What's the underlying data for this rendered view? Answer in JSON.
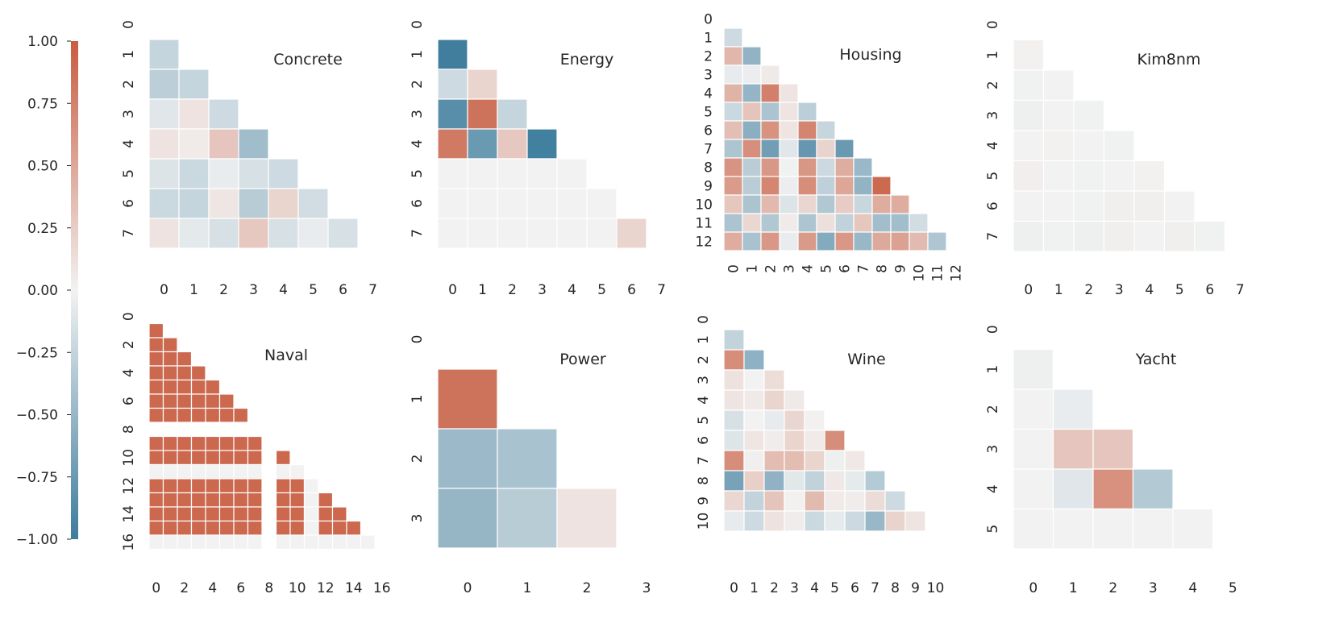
{
  "colorbar": {
    "min": -1.0,
    "max": 1.0,
    "tick_values": [
      1.0,
      0.75,
      0.5,
      0.25,
      0.0,
      -0.25,
      -0.5,
      -0.75,
      -1.0
    ],
    "tick_labels": [
      "1.00",
      "0.75",
      "0.50",
      "0.25",
      "0.00",
      "−0.25",
      "−0.50",
      "−0.75",
      "−1.00"
    ],
    "low_color": "#3d7c9c",
    "mid_color": "#f2f2f2",
    "high_color": "#c85c40"
  },
  "chart_data": [
    {
      "type": "heatmap",
      "title": "Concrete",
      "n": 8,
      "x_ticks": [
        "0",
        "1",
        "2",
        "3",
        "4",
        "5",
        "6",
        "7"
      ],
      "y_ticks": [
        "0",
        "1",
        "2",
        "3",
        "4",
        "5",
        "6",
        "7"
      ],
      "matrix": [
        [
          null,
          null,
          null,
          null,
          null,
          null,
          null,
          null
        ],
        [
          -0.25,
          null,
          null,
          null,
          null,
          null,
          null,
          null
        ],
        [
          -0.3,
          -0.25,
          null,
          null,
          null,
          null,
          null,
          null
        ],
        [
          -0.1,
          0.1,
          -0.2,
          null,
          null,
          null,
          null,
          null
        ],
        [
          0.1,
          0.05,
          0.3,
          -0.45,
          null,
          null,
          null,
          null
        ],
        [
          -0.12,
          -0.22,
          -0.05,
          -0.15,
          -0.2,
          null,
          null,
          null
        ],
        [
          -0.22,
          -0.25,
          0.08,
          -0.32,
          0.2,
          -0.18,
          null,
          null
        ],
        [
          0.1,
          -0.08,
          -0.15,
          0.28,
          -0.15,
          -0.05,
          -0.15,
          null
        ]
      ]
    },
    {
      "type": "heatmap",
      "title": "Energy",
      "n": 8,
      "x_ticks": [
        "0",
        "1",
        "2",
        "3",
        "4",
        "5",
        "6",
        "7"
      ],
      "y_ticks": [
        "0",
        "1",
        "2",
        "3",
        "4",
        "5",
        "6",
        "7"
      ],
      "matrix": [
        [
          null,
          null,
          null,
          null,
          null,
          null,
          null,
          null
        ],
        [
          -0.98,
          null,
          null,
          null,
          null,
          null,
          null,
          null
        ],
        [
          -0.2,
          0.2,
          null,
          null,
          null,
          null,
          null,
          null
        ],
        [
          -0.85,
          0.85,
          -0.25,
          null,
          null,
          null,
          null,
          null
        ],
        [
          0.8,
          -0.75,
          0.28,
          -0.97,
          null,
          null,
          null,
          null
        ],
        [
          0,
          0,
          0,
          0,
          0,
          null,
          null,
          null
        ],
        [
          0,
          0,
          0,
          0,
          0,
          0,
          null,
          null
        ],
        [
          0,
          0,
          0,
          0,
          0,
          0,
          0.2,
          null
        ]
      ]
    },
    {
      "type": "heatmap",
      "title": "Housing",
      "n": 13,
      "x_ticks": [
        "0",
        "1",
        "2",
        "3",
        "4",
        "5",
        "6",
        "7",
        "8",
        "9",
        "10",
        "11",
        "12"
      ],
      "y_ticks": [
        "0",
        "1",
        "2",
        "3",
        "4",
        "5",
        "6",
        "7",
        "8",
        "9",
        "10",
        "11",
        "12"
      ],
      "matrix": [
        [
          null,
          null,
          null,
          null,
          null,
          null,
          null,
          null,
          null,
          null,
          null,
          null,
          null
        ],
        [
          -0.2,
          null,
          null,
          null,
          null,
          null,
          null,
          null,
          null,
          null,
          null,
          null,
          null
        ],
        [
          0.4,
          -0.53,
          null,
          null,
          null,
          null,
          null,
          null,
          null,
          null,
          null,
          null,
          null
        ],
        [
          -0.06,
          -0.04,
          0.06,
          null,
          null,
          null,
          null,
          null,
          null,
          null,
          null,
          null,
          null
        ],
        [
          0.42,
          -0.52,
          0.76,
          0.09,
          null,
          null,
          null,
          null,
          null,
          null,
          null,
          null,
          null
        ],
        [
          -0.22,
          0.31,
          -0.39,
          0.09,
          -0.3,
          null,
          null,
          null,
          null,
          null,
          null,
          null,
          null
        ],
        [
          0.35,
          -0.57,
          0.64,
          0.09,
          0.73,
          -0.24,
          null,
          null,
          null,
          null,
          null,
          null,
          null
        ],
        [
          -0.38,
          0.66,
          -0.71,
          -0.1,
          -0.77,
          0.21,
          -0.75,
          null,
          null,
          null,
          null,
          null,
          null
        ],
        [
          0.63,
          -0.31,
          0.6,
          -0.01,
          0.61,
          -0.21,
          0.46,
          -0.49,
          null,
          null,
          null,
          null,
          null
        ],
        [
          0.58,
          -0.31,
          0.72,
          -0.04,
          0.67,
          -0.29,
          0.51,
          -0.53,
          0.91,
          null,
          null,
          null,
          null
        ],
        [
          0.29,
          -0.39,
          0.38,
          -0.12,
          0.19,
          -0.36,
          0.26,
          -0.23,
          0.46,
          0.46,
          null,
          null,
          null
        ],
        [
          -0.39,
          0.18,
          -0.36,
          0.05,
          -0.38,
          0.13,
          -0.27,
          0.29,
          -0.44,
          -0.44,
          -0.18,
          null,
          null
        ],
        [
          0.46,
          -0.41,
          0.6,
          -0.05,
          0.59,
          -0.61,
          0.6,
          -0.5,
          0.49,
          0.54,
          0.37,
          -0.37,
          null
        ]
      ]
    },
    {
      "type": "heatmap",
      "title": "Kim8nm",
      "n": 8,
      "x_ticks": [
        "0",
        "1",
        "2",
        "3",
        "4",
        "5",
        "6",
        "7"
      ],
      "y_ticks": [
        "0",
        "1",
        "2",
        "3",
        "4",
        "5",
        "6",
        "7"
      ],
      "matrix": [
        [
          null,
          null,
          null,
          null,
          null,
          null,
          null,
          null
        ],
        [
          0.01,
          null,
          null,
          null,
          null,
          null,
          null,
          null
        ],
        [
          -0.01,
          0.0,
          null,
          null,
          null,
          null,
          null,
          null
        ],
        [
          -0.02,
          0.0,
          -0.01,
          null,
          null,
          null,
          null,
          null
        ],
        [
          0.0,
          0.01,
          0.0,
          -0.01,
          null,
          null,
          null,
          null
        ],
        [
          0.03,
          0.0,
          -0.01,
          0.0,
          0.01,
          null,
          null,
          null
        ],
        [
          0.0,
          0.0,
          -0.01,
          0.02,
          0.02,
          0.0,
          null,
          null
        ],
        [
          -0.02,
          -0.01,
          -0.02,
          0.02,
          0.0,
          0.02,
          -0.01,
          null
        ]
      ]
    },
    {
      "type": "heatmap",
      "title": "Naval",
      "n": 17,
      "x_ticks": [
        "0",
        "2",
        "4",
        "6",
        "8",
        "10",
        "12",
        "14",
        "16"
      ],
      "y_ticks": [
        "0",
        "2",
        "4",
        "6",
        "8",
        "10",
        "12",
        "14",
        "16"
      ],
      "blank_rows_cols": [
        8
      ],
      "zero_rows_cols": [
        11,
        16
      ],
      "fill_value": 0.92
    },
    {
      "type": "heatmap",
      "title": "Power",
      "n": 4,
      "x_ticks": [
        "0",
        "1",
        "2",
        "3"
      ],
      "y_ticks": [
        "0",
        "1",
        "2",
        "3"
      ],
      "matrix": [
        [
          null,
          null,
          null,
          null
        ],
        [
          0.85,
          null,
          null,
          null
        ],
        [
          -0.48,
          -0.41,
          null,
          null
        ],
        [
          -0.51,
          -0.32,
          0.1,
          null
        ]
      ]
    },
    {
      "type": "heatmap",
      "title": "Wine",
      "n": 11,
      "x_ticks": [
        "0",
        "1",
        "2",
        "3",
        "4",
        "5",
        "6",
        "7",
        "8",
        "9",
        "10"
      ],
      "y_ticks": [
        "0",
        "1",
        "2",
        "3",
        "4",
        "5",
        "6",
        "7",
        "8",
        "9",
        "10"
      ],
      "matrix": [
        [
          null,
          null,
          null,
          null,
          null,
          null,
          null,
          null,
          null,
          null,
          null
        ],
        [
          -0.26,
          null,
          null,
          null,
          null,
          null,
          null,
          null,
          null,
          null,
          null
        ],
        [
          0.67,
          -0.55,
          null,
          null,
          null,
          null,
          null,
          null,
          null,
          null,
          null
        ],
        [
          0.11,
          0.0,
          0.14,
          null,
          null,
          null,
          null,
          null,
          null,
          null,
          null
        ],
        [
          0.09,
          0.06,
          0.2,
          0.06,
          null,
          null,
          null,
          null,
          null,
          null,
          null
        ],
        [
          -0.15,
          0.0,
          -0.06,
          0.19,
          0.01,
          null,
          null,
          null,
          null,
          null,
          null
        ],
        [
          -0.11,
          0.08,
          0.04,
          0.2,
          0.05,
          0.67,
          null,
          null,
          null,
          null,
          null
        ],
        [
          0.67,
          0.02,
          0.36,
          0.36,
          0.2,
          -0.02,
          0.07,
          null,
          null,
          null,
          null
        ],
        [
          -0.68,
          0.23,
          -0.54,
          -0.09,
          -0.27,
          0.07,
          -0.07,
          -0.34,
          null,
          null,
          null
        ],
        [
          0.18,
          -0.26,
          0.31,
          0.01,
          0.37,
          0.05,
          0.04,
          0.15,
          -0.2,
          null,
          null
        ],
        [
          -0.06,
          -0.2,
          0.11,
          0.04,
          -0.22,
          -0.07,
          -0.21,
          -0.5,
          0.21,
          0.09,
          null
        ]
      ]
    },
    {
      "type": "heatmap",
      "title": "Yacht",
      "n": 6,
      "x_ticks": [
        "0",
        "1",
        "2",
        "3",
        "4",
        "5"
      ],
      "y_ticks": [
        "0",
        "1",
        "2",
        "3",
        "4",
        "5"
      ],
      "matrix": [
        [
          null,
          null,
          null,
          null,
          null,
          null
        ],
        [
          -0.02,
          null,
          null,
          null,
          null,
          null
        ],
        [
          0.0,
          -0.05,
          null,
          null,
          null,
          null
        ],
        [
          0.0,
          0.3,
          0.3,
          null,
          null,
          null
        ],
        [
          0.0,
          -0.1,
          0.65,
          -0.35,
          null,
          null
        ],
        [
          0.0,
          0.0,
          0.0,
          0.0,
          0.0,
          null
        ]
      ]
    }
  ]
}
